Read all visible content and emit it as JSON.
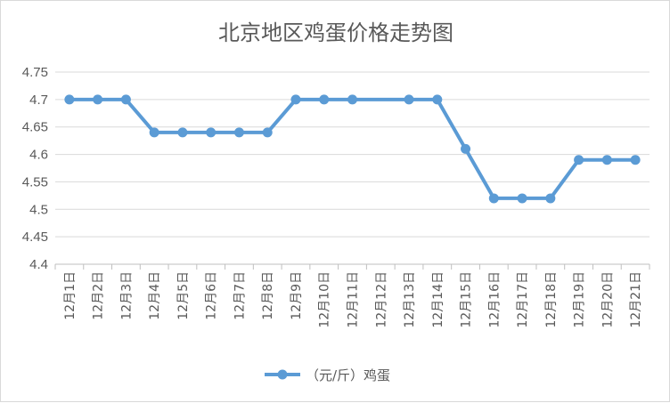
{
  "chart_data": {
    "type": "line",
    "title": "北京地区鸡蛋价格走势图",
    "categories": [
      "12月1日",
      "12月2日",
      "12月3日",
      "12月4日",
      "12月5日",
      "12月6日",
      "12月7日",
      "12月8日",
      "12月9日",
      "12月10日",
      "12月11日",
      "12月12日",
      "12月13日",
      "12月14日",
      "12月15日",
      "12月16日",
      "12月17日",
      "12月18日",
      "12月19日",
      "12月20日",
      "12月21日"
    ],
    "series": [
      {
        "name": "（元/斤）鸡蛋",
        "values": [
          4.7,
          4.7,
          4.7,
          4.64,
          4.64,
          4.64,
          4.64,
          4.64,
          4.7,
          4.7,
          4.7,
          null,
          4.7,
          4.7,
          4.61,
          4.52,
          4.52,
          4.52,
          4.59,
          4.59,
          4.59
        ],
        "color": "#5b9bd5"
      }
    ],
    "ylim": [
      4.4,
      4.75
    ],
    "yticks": [
      "4.4",
      "4.45",
      "4.5",
      "4.55",
      "4.6",
      "4.65",
      "4.7",
      "4.75"
    ],
    "grid": true,
    "legend": "bottom"
  }
}
